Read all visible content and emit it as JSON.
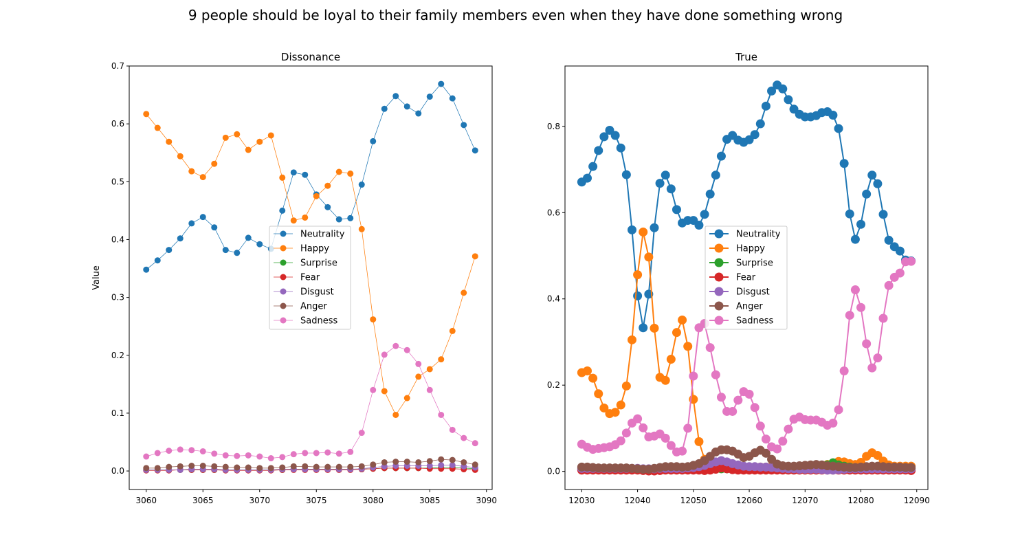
{
  "figure_title": "9 people should be loyal to their family members even when they have done something wrong",
  "chart_data": [
    {
      "type": "line",
      "title": "Dissonance",
      "xlabel": "",
      "ylabel": "Value",
      "xlim": [
        3058.5,
        3090.5
      ],
      "ylim": [
        -0.032,
        0.7
      ],
      "xticks": [
        3060,
        3065,
        3070,
        3075,
        3080,
        3085,
        3090
      ],
      "yticks": [
        0.0,
        0.1,
        0.2,
        0.3,
        0.4,
        0.5,
        0.6,
        0.7
      ],
      "ytick_labels": [
        "0.0",
        "0.1",
        "0.2",
        "0.3",
        "0.4",
        "0.5",
        "0.6",
        "0.7"
      ],
      "grid": false,
      "legend_position": "center",
      "x": [
        3060,
        3061,
        3062,
        3063,
        3064,
        3065,
        3066,
        3067,
        3068,
        3069,
        3070,
        3071,
        3072,
        3073,
        3074,
        3075,
        3076,
        3077,
        3078,
        3079,
        3080,
        3081,
        3082,
        3083,
        3084,
        3085,
        3086,
        3087,
        3088,
        3089
      ],
      "series": [
        {
          "name": "Neutrality",
          "color": "#1f77b4",
          "values": [
            0.348,
            0.364,
            0.382,
            0.402,
            0.428,
            0.439,
            0.421,
            0.382,
            0.377,
            0.403,
            0.392,
            0.384,
            0.45,
            0.516,
            0.512,
            0.478,
            0.456,
            0.435,
            0.437,
            0.495,
            0.57,
            0.626,
            0.648,
            0.63,
            0.618,
            0.647,
            0.669,
            0.644,
            0.598,
            0.554
          ]
        },
        {
          "name": "Happy",
          "color": "#ff7f0e",
          "values": [
            0.617,
            0.593,
            0.569,
            0.544,
            0.518,
            0.508,
            0.531,
            0.576,
            0.582,
            0.555,
            0.569,
            0.58,
            0.507,
            0.433,
            0.438,
            0.475,
            0.493,
            0.517,
            0.514,
            0.418,
            0.262,
            0.138,
            0.097,
            0.126,
            0.163,
            0.176,
            0.193,
            0.242,
            0.308,
            0.371
          ]
        },
        {
          "name": "Surprise",
          "color": "#2ca02c",
          "values": [
            0.002,
            0.002,
            0.002,
            0.002,
            0.002,
            0.002,
            0.002,
            0.002,
            0.002,
            0.002,
            0.002,
            0.002,
            0.002,
            0.003,
            0.003,
            0.003,
            0.003,
            0.003,
            0.003,
            0.003,
            0.004,
            0.005,
            0.005,
            0.005,
            0.005,
            0.005,
            0.006,
            0.006,
            0.005,
            0.004
          ]
        },
        {
          "name": "Fear",
          "color": "#d62728",
          "values": [
            0.001,
            0.001,
            0.001,
            0.002,
            0.002,
            0.002,
            0.002,
            0.001,
            0.001,
            0.001,
            0.001,
            0.001,
            0.002,
            0.002,
            0.002,
            0.002,
            0.002,
            0.002,
            0.002,
            0.003,
            0.004,
            0.005,
            0.005,
            0.005,
            0.005,
            0.004,
            0.004,
            0.004,
            0.003,
            0.002
          ]
        },
        {
          "name": "Disgust",
          "color": "#9467bd",
          "values": [
            0.002,
            0.002,
            0.002,
            0.002,
            0.003,
            0.003,
            0.003,
            0.002,
            0.002,
            0.002,
            0.002,
            0.002,
            0.003,
            0.003,
            0.003,
            0.003,
            0.003,
            0.003,
            0.003,
            0.004,
            0.006,
            0.008,
            0.009,
            0.009,
            0.009,
            0.009,
            0.01,
            0.01,
            0.008,
            0.006
          ]
        },
        {
          "name": "Anger",
          "color": "#8c564b",
          "values": [
            0.005,
            0.005,
            0.007,
            0.008,
            0.009,
            0.009,
            0.008,
            0.007,
            0.006,
            0.006,
            0.005,
            0.005,
            0.006,
            0.008,
            0.008,
            0.007,
            0.007,
            0.007,
            0.007,
            0.008,
            0.011,
            0.015,
            0.016,
            0.016,
            0.015,
            0.017,
            0.02,
            0.019,
            0.015,
            0.011
          ]
        },
        {
          "name": "Sadness",
          "color": "#e377c2",
          "values": [
            0.025,
            0.031,
            0.035,
            0.037,
            0.036,
            0.034,
            0.03,
            0.027,
            0.026,
            0.027,
            0.025,
            0.022,
            0.024,
            0.029,
            0.031,
            0.031,
            0.032,
            0.03,
            0.033,
            0.066,
            0.14,
            0.201,
            0.216,
            0.209,
            0.185,
            0.14,
            0.097,
            0.071,
            0.057,
            0.048
          ]
        }
      ]
    },
    {
      "type": "line",
      "title": "True",
      "xlabel": "",
      "ylabel": "",
      "xlim": [
        12027.0,
        12092.0
      ],
      "ylim": [
        -0.042,
        0.94
      ],
      "xticks": [
        12030,
        12040,
        12050,
        12060,
        12070,
        12080,
        12090
      ],
      "yticks": [
        0.0,
        0.2,
        0.4,
        0.6,
        0.8
      ],
      "ytick_labels": [
        "0.0",
        "0.2",
        "0.4",
        "0.6",
        "0.8"
      ],
      "grid": false,
      "legend_position": "center",
      "x": [
        12030,
        12031,
        12032,
        12033,
        12034,
        12035,
        12036,
        12037,
        12038,
        12039,
        12040,
        12041,
        12042,
        12043,
        12044,
        12045,
        12046,
        12047,
        12048,
        12049,
        12050,
        12051,
        12052,
        12053,
        12054,
        12055,
        12056,
        12057,
        12058,
        12059,
        12060,
        12061,
        12062,
        12063,
        12064,
        12065,
        12066,
        12067,
        12068,
        12069,
        12070,
        12071,
        12072,
        12073,
        12074,
        12075,
        12076,
        12077,
        12078,
        12079,
        12080,
        12081,
        12082,
        12083,
        12084,
        12085,
        12086,
        12087,
        12088,
        12089
      ],
      "series": [
        {
          "name": "Neutrality",
          "color": "#1f77b4",
          "values": [
            0.671,
            0.68,
            0.707,
            0.744,
            0.776,
            0.791,
            0.779,
            0.75,
            0.688,
            0.56,
            0.407,
            0.333,
            0.411,
            0.565,
            0.668,
            0.687,
            0.655,
            0.607,
            0.576,
            0.582,
            0.582,
            0.571,
            0.596,
            0.643,
            0.687,
            0.731,
            0.77,
            0.779,
            0.768,
            0.763,
            0.769,
            0.781,
            0.806,
            0.847,
            0.882,
            0.896,
            0.887,
            0.862,
            0.84,
            0.828,
            0.822,
            0.822,
            0.825,
            0.832,
            0.834,
            0.826,
            0.795,
            0.714,
            0.597,
            0.538,
            0.573,
            0.643,
            0.687,
            0.667,
            0.596,
            0.536,
            0.521,
            0.511,
            0.49,
            0.488
          ]
        },
        {
          "name": "Happy",
          "color": "#ff7f0e",
          "values": [
            0.229,
            0.233,
            0.216,
            0.18,
            0.147,
            0.134,
            0.137,
            0.154,
            0.198,
            0.305,
            0.456,
            0.555,
            0.497,
            0.332,
            0.218,
            0.211,
            0.26,
            0.322,
            0.351,
            0.29,
            0.167,
            0.069,
            0.028,
            0.015,
            0.012,
            0.011,
            0.01,
            0.01,
            0.01,
            0.009,
            0.009,
            0.009,
            0.01,
            0.01,
            0.011,
            0.011,
            0.011,
            0.011,
            0.011,
            0.011,
            0.012,
            0.012,
            0.013,
            0.014,
            0.016,
            0.019,
            0.023,
            0.022,
            0.018,
            0.016,
            0.021,
            0.035,
            0.043,
            0.037,
            0.024,
            0.015,
            0.012,
            0.012,
            0.012,
            0.012
          ]
        },
        {
          "name": "Surprise",
          "color": "#2ca02c",
          "values": [
            0.005,
            0.005,
            0.005,
            0.005,
            0.005,
            0.005,
            0.005,
            0.005,
            0.005,
            0.005,
            0.005,
            0.005,
            0.005,
            0.005,
            0.005,
            0.006,
            0.006,
            0.006,
            0.006,
            0.006,
            0.006,
            0.006,
            0.006,
            0.006,
            0.006,
            0.006,
            0.006,
            0.006,
            0.006,
            0.006,
            0.006,
            0.006,
            0.006,
            0.006,
            0.006,
            0.006,
            0.007,
            0.007,
            0.008,
            0.009,
            0.01,
            0.011,
            0.012,
            0.013,
            0.015,
            0.02,
            0.015,
            0.012,
            0.01,
            0.008,
            0.007,
            0.007,
            0.007,
            0.007,
            0.006,
            0.006,
            0.006,
            0.006,
            0.006,
            0.006
          ]
        },
        {
          "name": "Fear",
          "color": "#d62728",
          "values": [
            0.003,
            0.003,
            0.003,
            0.003,
            0.003,
            0.003,
            0.003,
            0.003,
            0.003,
            0.003,
            0.003,
            0.002,
            0.001,
            0.001,
            0.002,
            0.003,
            0.003,
            0.003,
            0.003,
            0.003,
            0.003,
            0.003,
            0.002,
            0.003,
            0.005,
            0.008,
            0.006,
            0.004,
            0.003,
            0.003,
            0.003,
            0.003,
            0.003,
            0.003,
            0.003,
            0.003,
            0.003,
            0.003,
            0.003,
            0.003,
            0.003,
            0.003,
            0.003,
            0.003,
            0.003,
            0.003,
            0.003,
            0.003,
            0.003,
            0.003,
            0.003,
            0.003,
            0.003,
            0.003,
            0.003,
            0.003,
            0.003,
            0.003,
            0.003,
            0.002
          ]
        },
        {
          "name": "Disgust",
          "color": "#9467bd",
          "values": [
            0.007,
            0.007,
            0.007,
            0.007,
            0.007,
            0.007,
            0.007,
            0.007,
            0.007,
            0.007,
            0.007,
            0.006,
            0.006,
            0.006,
            0.007,
            0.007,
            0.007,
            0.007,
            0.007,
            0.008,
            0.009,
            0.011,
            0.014,
            0.018,
            0.022,
            0.025,
            0.022,
            0.018,
            0.015,
            0.012,
            0.011,
            0.011,
            0.01,
            0.01,
            0.009,
            0.008,
            0.007,
            0.006,
            0.006,
            0.005,
            0.005,
            0.005,
            0.005,
            0.004,
            0.003,
            0.003,
            0.004,
            0.005,
            0.006,
            0.006,
            0.006,
            0.006,
            0.006,
            0.006,
            0.006,
            0.006,
            0.006,
            0.006,
            0.006,
            0.006
          ]
        },
        {
          "name": "Anger",
          "color": "#8c564b",
          "values": [
            0.01,
            0.01,
            0.009,
            0.008,
            0.008,
            0.008,
            0.008,
            0.008,
            0.008,
            0.007,
            0.006,
            0.005,
            0.005,
            0.007,
            0.009,
            0.011,
            0.011,
            0.011,
            0.01,
            0.011,
            0.014,
            0.018,
            0.025,
            0.035,
            0.045,
            0.05,
            0.05,
            0.047,
            0.04,
            0.032,
            0.035,
            0.043,
            0.049,
            0.042,
            0.028,
            0.017,
            0.013,
            0.012,
            0.012,
            0.013,
            0.014,
            0.015,
            0.016,
            0.015,
            0.013,
            0.012,
            0.011,
            0.01,
            0.009,
            0.009,
            0.01,
            0.011,
            0.012,
            0.012,
            0.011,
            0.01,
            0.01,
            0.01,
            0.009,
            0.009
          ]
        },
        {
          "name": "Sadness",
          "color": "#e377c2",
          "values": [
            0.063,
            0.056,
            0.051,
            0.053,
            0.055,
            0.057,
            0.062,
            0.071,
            0.089,
            0.112,
            0.122,
            0.101,
            0.08,
            0.082,
            0.087,
            0.077,
            0.06,
            0.045,
            0.047,
            0.1,
            0.221,
            0.333,
            0.343,
            0.287,
            0.224,
            0.172,
            0.139,
            0.139,
            0.165,
            0.185,
            0.179,
            0.148,
            0.105,
            0.075,
            0.057,
            0.052,
            0.07,
            0.098,
            0.121,
            0.126,
            0.12,
            0.119,
            0.119,
            0.114,
            0.107,
            0.112,
            0.143,
            0.233,
            0.362,
            0.421,
            0.38,
            0.296,
            0.24,
            0.263,
            0.355,
            0.431,
            0.45,
            0.46,
            0.486,
            0.487
          ]
        }
      ]
    }
  ]
}
